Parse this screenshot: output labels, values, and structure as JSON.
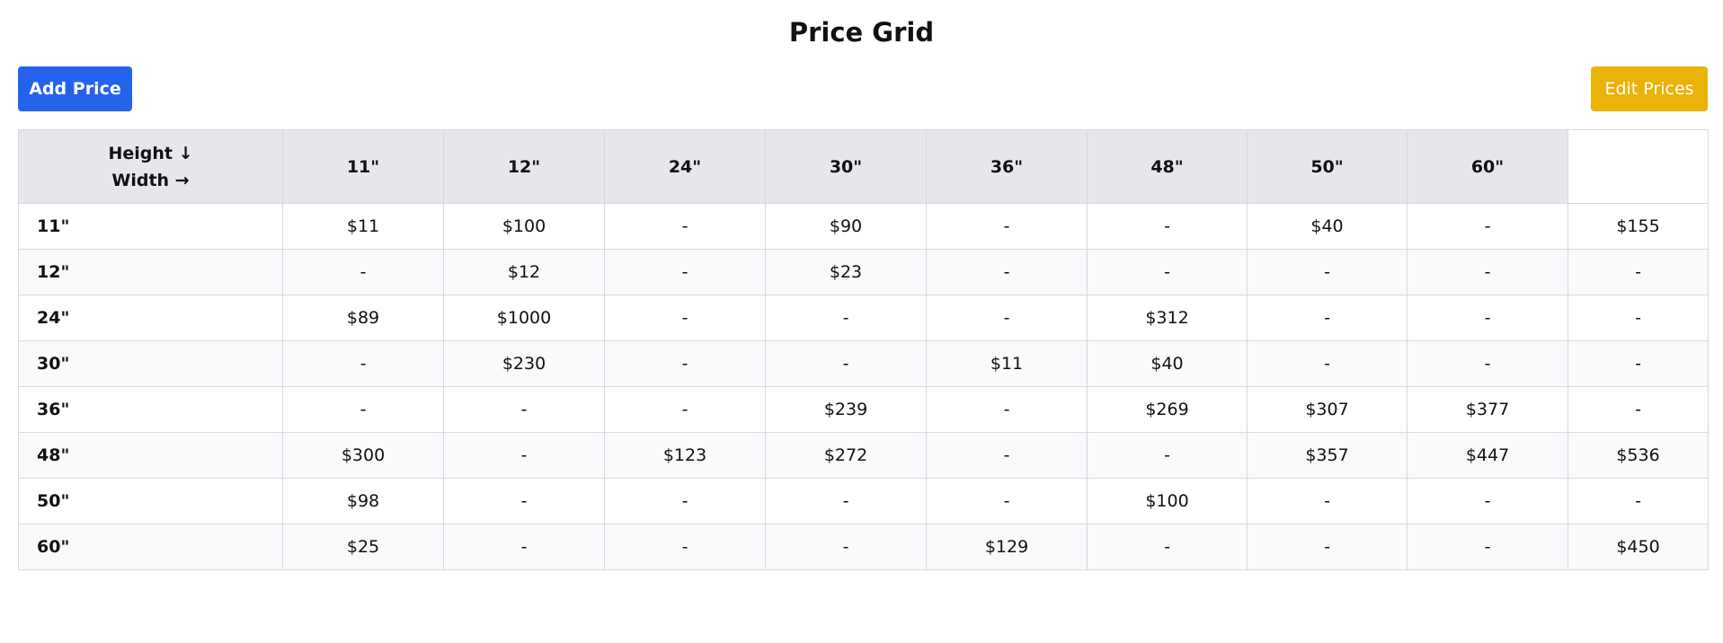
{
  "page": {
    "title": "Price Grid"
  },
  "toolbar": {
    "add_label": "Add Price",
    "edit_label": "Edit Prices"
  },
  "colors": {
    "add_button": "#2563eb",
    "edit_button": "#eab308",
    "header_bg": "#e5e7eb",
    "stripe_bg": "#f9fafb"
  },
  "grid": {
    "corner_line1": "Height ↓",
    "corner_line2": "Width →",
    "columns": [
      "11\"",
      "12\"",
      "24\"",
      "30\"",
      "36\"",
      "48\"",
      "50\"",
      "60\"",
      ""
    ],
    "rows": [
      {
        "label": "11\"",
        "cells": [
          "$11",
          "$100",
          "-",
          "$90",
          "-",
          "-",
          "$40",
          "-",
          "$155"
        ]
      },
      {
        "label": "12\"",
        "cells": [
          "-",
          "$12",
          "-",
          "$23",
          "-",
          "-",
          "-",
          "-",
          "-"
        ]
      },
      {
        "label": "24\"",
        "cells": [
          "$89",
          "$1000",
          "-",
          "-",
          "-",
          "$312",
          "-",
          "-",
          "-"
        ]
      },
      {
        "label": "30\"",
        "cells": [
          "-",
          "$230",
          "-",
          "-",
          "$11",
          "$40",
          "-",
          "-",
          "-"
        ]
      },
      {
        "label": "36\"",
        "cells": [
          "-",
          "-",
          "-",
          "$239",
          "-",
          "$269",
          "$307",
          "$377",
          "-"
        ]
      },
      {
        "label": "48\"",
        "cells": [
          "$300",
          "-",
          "$123",
          "$272",
          "-",
          "-",
          "$357",
          "$447",
          "$536"
        ]
      },
      {
        "label": "50\"",
        "cells": [
          "$98",
          "-",
          "-",
          "-",
          "-",
          "$100",
          "-",
          "-",
          "-"
        ]
      },
      {
        "label": "60\"",
        "cells": [
          "$25",
          "-",
          "-",
          "-",
          "$129",
          "-",
          "-",
          "-",
          "$450"
        ]
      }
    ]
  }
}
